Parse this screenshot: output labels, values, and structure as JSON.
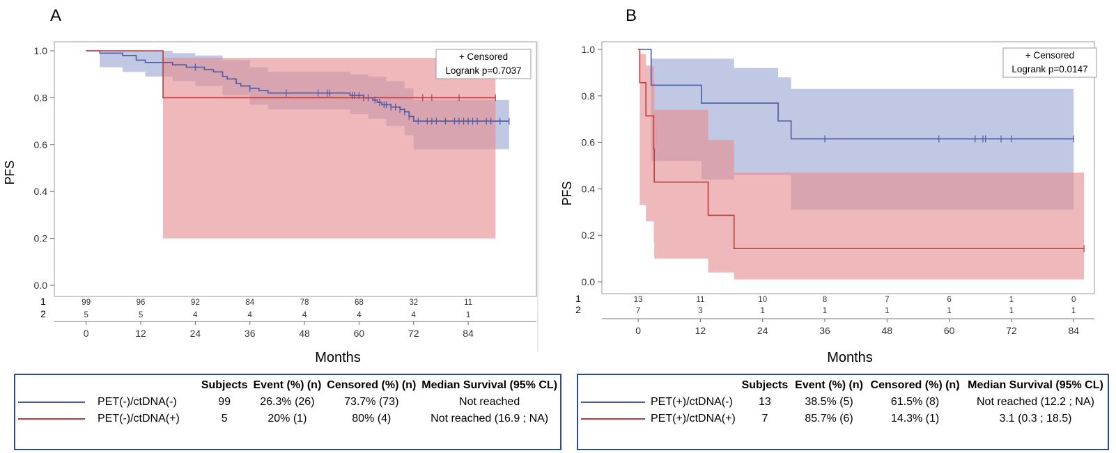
{
  "colors": {
    "blue": "#4a5aa6",
    "red": "#c0393b",
    "blue_fill": "#9aa6d2",
    "red_fill": "#e58e92",
    "axis": "#888888",
    "frame": "#2e4a8f"
  },
  "panels": [
    {
      "label": "A",
      "legend_box": {
        "censored": "+ Censored",
        "logrank": "Logrank p=0.7037"
      },
      "table": {
        "headers": [
          "Subjects",
          "Event (%) (n)",
          "Censored (%) (n)",
          "Median Survival (95% CL)"
        ],
        "rows": [
          {
            "name": "PET(-)/ctDNA(-)",
            "color": "#4a5aa6",
            "subjects": "99",
            "event": "26.3% (26)",
            "censored": "73.7% (73)",
            "median": "Not reached"
          },
          {
            "name": "PET(-)/ctDNA(+)",
            "color": "#c0393b",
            "subjects": "5",
            "event": "20% (1)",
            "censored": "80% (4)",
            "median": "Not reached (16.9 ; NA)"
          }
        ]
      }
    },
    {
      "label": "B",
      "legend_box": {
        "censored": "+ Censored",
        "logrank": "Logrank p=0.0147"
      },
      "table": {
        "headers": [
          "Subjects",
          "Event (%) (n)",
          "Censored (%) (n)",
          "Median Survival (95% CL)"
        ],
        "rows": [
          {
            "name": "PET(+)/ctDNA(-)",
            "color": "#4a5aa6",
            "subjects": "13",
            "event": "38.5% (5)",
            "censored": "61.5% (8)",
            "median": "Not reached (12.2 ; NA)"
          },
          {
            "name": "PET(+)/ctDNA(+)",
            "color": "#c0393b",
            "subjects": "7",
            "event": "85.7% (6)",
            "censored": "14.3% (1)",
            "median": "3.1 (0.3 ; 18.5)"
          }
        ]
      }
    }
  ],
  "chart_data": [
    {
      "type": "line",
      "subtype": "kaplan-meier step",
      "title": "A",
      "xlabel": "Months",
      "ylabel": "PFS",
      "xlim": [
        -7,
        99
      ],
      "ylim": [
        0,
        1
      ],
      "xticks": [
        0,
        12,
        24,
        36,
        48,
        60,
        72,
        84
      ],
      "yticks": [
        0.0,
        0.2,
        0.4,
        0.6,
        0.8,
        1.0
      ],
      "ytick_labels": [
        "0.0",
        "0.2",
        "0.4",
        "0.6",
        "0.8",
        "1.0"
      ],
      "series": [
        {
          "name": "PET(-)/ctDNA(-)",
          "color": "#4a5aa6",
          "steps": [
            [
              0,
              1.0
            ],
            [
              3,
              0.99
            ],
            [
              8,
              0.98
            ],
            [
              11,
              0.96
            ],
            [
              13,
              0.95
            ],
            [
              18,
              0.95
            ],
            [
              19,
              0.94
            ],
            [
              22,
              0.93
            ],
            [
              26,
              0.92
            ],
            [
              28,
              0.91
            ],
            [
              30,
              0.89
            ],
            [
              31,
              0.88
            ],
            [
              33,
              0.86
            ],
            [
              34,
              0.85
            ],
            [
              36,
              0.84
            ],
            [
              38,
              0.83
            ],
            [
              40,
              0.82
            ],
            [
              58,
              0.81
            ],
            [
              61,
              0.8
            ],
            [
              63,
              0.79
            ],
            [
              64,
              0.78
            ],
            [
              65,
              0.77
            ],
            [
              67,
              0.76
            ],
            [
              69,
              0.75
            ],
            [
              70,
              0.74
            ],
            [
              71,
              0.72
            ],
            [
              72,
              0.7
            ],
            [
              93,
              0.7
            ]
          ],
          "ci": [
            [
              0,
              1.0,
              1.0
            ],
            [
              3,
              0.93,
              1.0
            ],
            [
              8,
              0.91,
              1.0
            ],
            [
              13,
              0.89,
              1.0
            ],
            [
              19,
              0.87,
              0.99
            ],
            [
              24,
              0.85,
              0.98
            ],
            [
              30,
              0.81,
              0.96
            ],
            [
              36,
              0.77,
              0.93
            ],
            [
              40,
              0.75,
              0.91
            ],
            [
              58,
              0.73,
              0.9
            ],
            [
              62,
              0.71,
              0.89
            ],
            [
              66,
              0.68,
              0.87
            ],
            [
              70,
              0.64,
              0.84
            ],
            [
              72,
              0.58,
              0.79
            ],
            [
              93,
              0.58,
              0.79
            ]
          ],
          "censor_times": [
            24,
            36,
            44,
            51,
            53,
            53.5,
            58.5,
            59,
            60,
            61,
            62,
            63.5,
            64.5,
            65.5,
            66,
            67,
            68,
            69,
            70,
            71,
            73,
            75,
            76,
            77,
            79,
            81,
            82,
            83,
            84,
            85,
            86,
            88,
            89,
            91,
            93
          ]
        },
        {
          "name": "PET(-)/ctDNA(+)",
          "color": "#c0393b",
          "steps": [
            [
              0,
              1.0
            ],
            [
              16.9,
              0.8
            ],
            [
              90,
              0.8
            ]
          ],
          "ci": [
            [
              16.9,
              0.2,
              0.97
            ],
            [
              90,
              0.2,
              0.97
            ]
          ],
          "censor_times": [
            74,
            76,
            82,
            90
          ]
        }
      ],
      "at_risk": {
        "times": [
          0,
          12,
          24,
          36,
          48,
          60,
          72,
          84
        ],
        "groups": [
          {
            "label": "1",
            "counts": [
              "99",
              "96",
              "92",
              "84",
              "78",
              "68",
              "32",
              "11"
            ]
          },
          {
            "label": "2",
            "counts": [
              "5",
              "5",
              "4",
              "4",
              "4",
              "4",
              "4",
              "1"
            ]
          }
        ]
      }
    },
    {
      "type": "line",
      "subtype": "kaplan-meier step",
      "title": "B",
      "xlabel": "Months",
      "ylabel": "PFS",
      "xlim": [
        -7,
        88
      ],
      "ylim": [
        0,
        1
      ],
      "xticks": [
        0,
        12,
        24,
        36,
        48,
        60,
        72,
        84
      ],
      "yticks": [
        0.0,
        0.2,
        0.4,
        0.6,
        0.8,
        1.0
      ],
      "ytick_labels": [
        "0.0",
        "0.2",
        "0.4",
        "0.6",
        "0.8",
        "1.0"
      ],
      "series": [
        {
          "name": "PET(+)/ctDNA(-)",
          "color": "#4a5aa6",
          "steps": [
            [
              0,
              1.0
            ],
            [
              2.5,
              0.846
            ],
            [
              12.2,
              0.769
            ],
            [
              27,
              0.692
            ],
            [
              29.5,
              0.615
            ],
            [
              84,
              0.615
            ]
          ],
          "ci": [
            [
              0,
              1.0,
              1.0
            ],
            [
              2.5,
              0.52,
              0.96
            ],
            [
              12.2,
              0.44,
              0.96
            ],
            [
              18.5,
              0.46,
              0.92
            ],
            [
              27,
              0.46,
              0.88
            ],
            [
              29.5,
              0.31,
              0.83
            ],
            [
              84,
              0.31,
              0.83
            ]
          ],
          "censor_times": [
            36,
            58,
            65,
            66.5,
            67,
            70,
            72,
            84
          ]
        },
        {
          "name": "PET(+)/ctDNA(+)",
          "color": "#c0393b",
          "steps": [
            [
              0,
              1.0
            ],
            [
              0.3,
              0.857
            ],
            [
              1.5,
              0.714
            ],
            [
              3.0,
              0.571
            ],
            [
              3.1,
              0.429
            ],
            [
              13.5,
              0.286
            ],
            [
              18.5,
              0.143
            ],
            [
              86,
              0.143
            ]
          ],
          "ci": [
            [
              0,
              1.0,
              1.0
            ],
            [
              0.3,
              0.33,
              0.98
            ],
            [
              1.5,
              0.26,
              0.93
            ],
            [
              3.0,
              0.17,
              0.87
            ],
            [
              3.1,
              0.1,
              0.74
            ],
            [
              13.5,
              0.04,
              0.61
            ],
            [
              18.5,
              0.01,
              0.47
            ],
            [
              86,
              0.01,
              0.47
            ]
          ],
          "censor_times": [
            86
          ]
        }
      ],
      "at_risk": {
        "times": [
          0,
          12,
          24,
          36,
          48,
          60,
          72,
          84
        ],
        "groups": [
          {
            "label": "1",
            "counts": [
              "13",
              "11",
              "10",
              "8",
              "7",
              "6",
              "1",
              "0"
            ]
          },
          {
            "label": "2",
            "counts": [
              "7",
              "3",
              "1",
              "1",
              "1",
              "1",
              "1",
              "1"
            ]
          }
        ]
      }
    }
  ]
}
